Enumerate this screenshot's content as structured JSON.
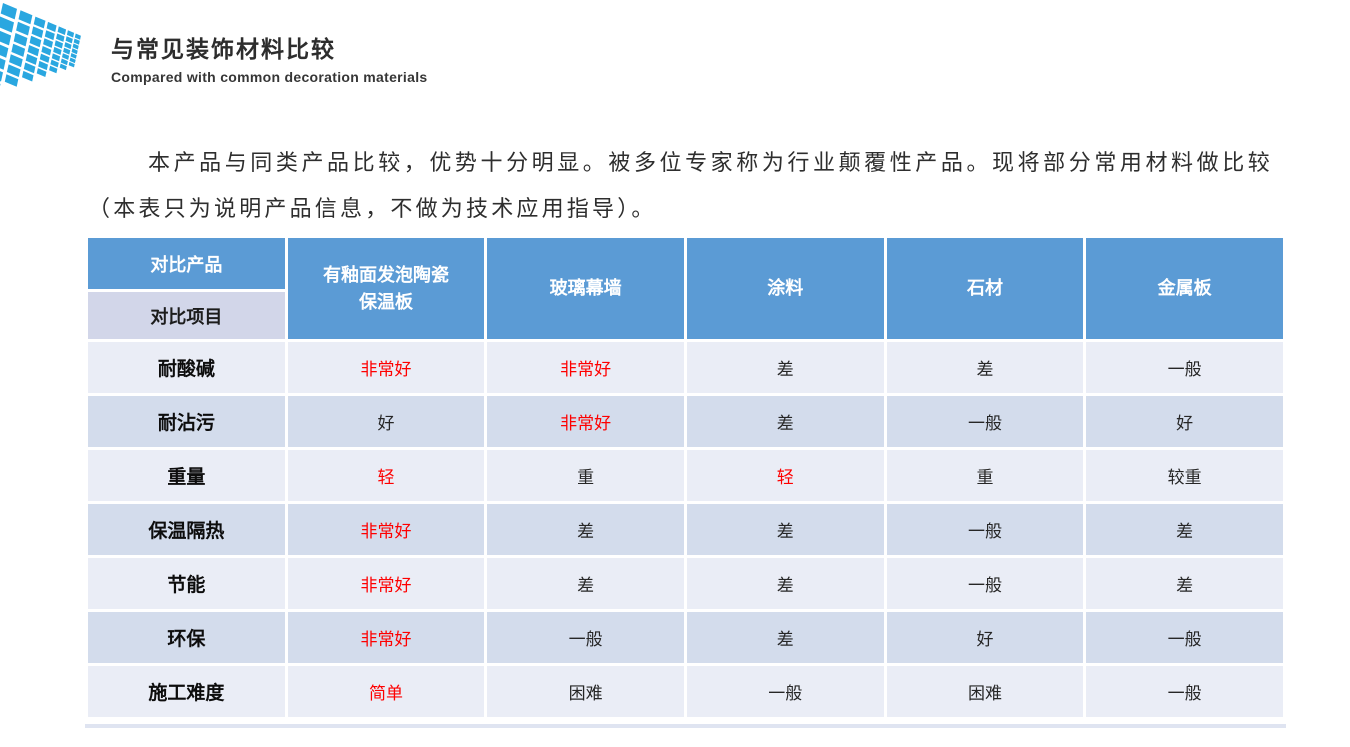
{
  "brand": {
    "logo_icon": "blue-facade-tiles-logo",
    "logo_color": "#2aa7e0",
    "title": "与常见装饰材料比较",
    "subtitle": "Compared with common decoration materials"
  },
  "intro": {
    "text": "本产品与同类产品比较，优势十分明显。被多位专家称为行业颠覆性产品。现将部分常用材料做比较（本表只为说明产品信息，不做为技术应用指导）。"
  },
  "table": {
    "corner_top": "对比产品",
    "corner_bottom": "对比项目",
    "columns": [
      "有釉面发泡陶瓷\n保温板",
      "玻璃幕墙",
      "涂料",
      "石材",
      "金属板"
    ],
    "rows": [
      {
        "label": "耐酸碱",
        "values": [
          {
            "text": "非常好",
            "highlight": true
          },
          {
            "text": "非常好",
            "highlight": true
          },
          {
            "text": "差",
            "highlight": false
          },
          {
            "text": "差",
            "highlight": false
          },
          {
            "text": "一般",
            "highlight": false
          }
        ]
      },
      {
        "label": "耐沾污",
        "values": [
          {
            "text": "好",
            "highlight": false
          },
          {
            "text": "非常好",
            "highlight": true
          },
          {
            "text": "差",
            "highlight": false
          },
          {
            "text": "一般",
            "highlight": false
          },
          {
            "text": "好",
            "highlight": false
          }
        ]
      },
      {
        "label": "重量",
        "values": [
          {
            "text": "轻",
            "highlight": true
          },
          {
            "text": "重",
            "highlight": false
          },
          {
            "text": "轻",
            "highlight": true
          },
          {
            "text": "重",
            "highlight": false
          },
          {
            "text": "较重",
            "highlight": false
          }
        ]
      },
      {
        "label": "保温隔热",
        "values": [
          {
            "text": "非常好",
            "highlight": true
          },
          {
            "text": "差",
            "highlight": false
          },
          {
            "text": "差",
            "highlight": false
          },
          {
            "text": "一般",
            "highlight": false
          },
          {
            "text": "差",
            "highlight": false
          }
        ]
      },
      {
        "label": "节能",
        "values": [
          {
            "text": "非常好",
            "highlight": true
          },
          {
            "text": "差",
            "highlight": false
          },
          {
            "text": "差",
            "highlight": false
          },
          {
            "text": "一般",
            "highlight": false
          },
          {
            "text": "差",
            "highlight": false
          }
        ]
      },
      {
        "label": "环保",
        "values": [
          {
            "text": "非常好",
            "highlight": true
          },
          {
            "text": "一般",
            "highlight": false
          },
          {
            "text": "差",
            "highlight": false
          },
          {
            "text": "好",
            "highlight": false
          },
          {
            "text": "一般",
            "highlight": false
          }
        ]
      },
      {
        "label": "施工难度",
        "values": [
          {
            "text": "简单",
            "highlight": true
          },
          {
            "text": "困难",
            "highlight": false
          },
          {
            "text": "一般",
            "highlight": false
          },
          {
            "text": "困难",
            "highlight": false
          },
          {
            "text": "一般",
            "highlight": false
          }
        ]
      }
    ],
    "colors": {
      "header_bg": "#5b9bd5",
      "corner_sub_bg": "#d2d6e9",
      "row_odd_bg": "#eaedf6",
      "row_even_bg": "#d3dcec",
      "highlight_text": "#fe0000",
      "normal_text": "#262626",
      "label_text": "#0d0d0d",
      "header_text": "#ffffff"
    }
  }
}
